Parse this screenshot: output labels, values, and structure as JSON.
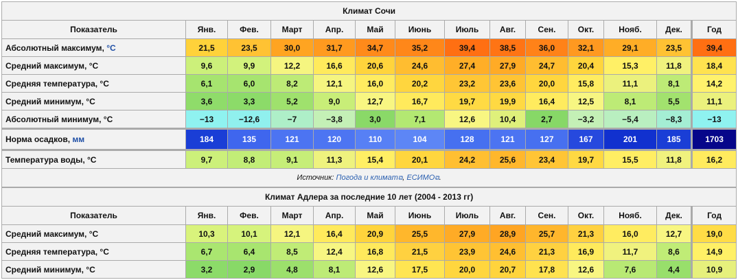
{
  "sochi": {
    "title": "Климат Сочи",
    "header": [
      "Показатель",
      "Янв.",
      "Фев.",
      "Март",
      "Апр.",
      "Май",
      "Июнь",
      "Июль",
      "Авг.",
      "Сен.",
      "Окт.",
      "Нояб.",
      "Дек.",
      "Год"
    ],
    "rows": [
      {
        "label": "Абсолютный максимум, ",
        "unit": "°C",
        "values": [
          "21,5",
          "23,5",
          "30,0",
          "31,7",
          "34,7",
          "35,2",
          "39,4",
          "38,5",
          "36,0",
          "32,1",
          "29,1",
          "23,5",
          "39,4"
        ],
        "colors": [
          "#ffd23a",
          "#ffc233",
          "#ffa421",
          "#ff9a1f",
          "#ff8a1a",
          "#ff8719",
          "#ff6f12",
          "#ff7414",
          "#ff8218",
          "#ff9920",
          "#ffad26",
          "#ffc233",
          "#ff6f12"
        ]
      },
      {
        "label": "Средний максимум, °C",
        "unit": "",
        "values": [
          "9,6",
          "9,9",
          "12,2",
          "16,6",
          "20,6",
          "24,6",
          "27,4",
          "27,9",
          "24,7",
          "20,4",
          "15,3",
          "11,8",
          "18,4"
        ],
        "colors": [
          "#ccf07a",
          "#d2f27c",
          "#f5f580",
          "#ffea5c",
          "#ffd43c",
          "#ffbd30",
          "#ffae27",
          "#ffab26",
          "#ffbd30",
          "#ffd53d",
          "#fff066",
          "#f0f27e",
          "#ffe24f"
        ]
      },
      {
        "label": "Средняя температура, °C",
        "unit": "",
        "values": [
          "6,1",
          "6,0",
          "8,2",
          "12,1",
          "16,0",
          "20,2",
          "23,2",
          "23,6",
          "20,0",
          "15,8",
          "11,1",
          "8,1",
          "14,2"
        ],
        "colors": [
          "#a6e46f",
          "#a6e46f",
          "#bdeb76",
          "#f5f580",
          "#ffec60",
          "#ffd63e",
          "#ffc635",
          "#ffc434",
          "#ffd63e",
          "#ffec60",
          "#ebf17d",
          "#bdeb76",
          "#fff26c"
        ]
      },
      {
        "label": "Средний минимум, °C",
        "unit": "",
        "values": [
          "3,6",
          "3,3",
          "5,2",
          "9,0",
          "12,7",
          "16,7",
          "19,7",
          "19,9",
          "16,4",
          "12,5",
          "8,1",
          "5,5",
          "11,1"
        ],
        "colors": [
          "#8fdc6a",
          "#8cdb69",
          "#9fe16d",
          "#c8ee78",
          "#f8f682",
          "#ffea5c",
          "#ffda43",
          "#ffd942",
          "#ffeb5e",
          "#f7f682",
          "#bdeb76",
          "#a2e26e",
          "#ebf17d"
        ]
      },
      {
        "label": "Абсолютный минимум, °C",
        "unit": "",
        "values": [
          "−13",
          "−12,6",
          "−7",
          "−3,8",
          "3,0",
          "7,1",
          "12,6",
          "10,4",
          "2,7",
          "−3,2",
          "−5,4",
          "−8,3",
          "−13"
        ],
        "colors": [
          "#8ff2f0",
          "#90f0ee",
          "#aeefc8",
          "#c4f0b6",
          "#8ad968",
          "#b3e872",
          "#f8f682",
          "#dff07b",
          "#87d867",
          "#c4f0b6",
          "#b9efc0",
          "#a4eed4",
          "#8ff2f0"
        ]
      },
      {
        "label": "Норма осадков, ",
        "unit": "мм",
        "rain": true,
        "values": [
          "184",
          "135",
          "121",
          "120",
          "110",
          "104",
          "128",
          "121",
          "127",
          "167",
          "201",
          "185",
          "1703"
        ],
        "colors": [
          "#1a3ed6",
          "#3f66ee",
          "#4c74f2",
          "#4d75f2",
          "#5780f5",
          "#5d86f6",
          "#4670f0",
          "#4c74f2",
          "#4770f0",
          "#2649de",
          "#1131cf",
          "#1a3ed6",
          "#06068a"
        ]
      },
      {
        "label": "Температура воды, °C",
        "unit": "",
        "values": [
          "9,7",
          "8,8",
          "9,1",
          "11,3",
          "15,4",
          "20,1",
          "24,2",
          "25,6",
          "23,4",
          "19,7",
          "15,5",
          "11,8",
          "16,2"
        ],
        "colors": [
          "#ccf07a",
          "#c2ed77",
          "#c6ee78",
          "#eef27e",
          "#ffef64",
          "#ffd63e",
          "#ffbf31",
          "#ffb72c",
          "#ffc535",
          "#ffd942",
          "#ffee63",
          "#f0f27e",
          "#ffeb5e"
        ]
      }
    ],
    "source_prefix": "Источник: ",
    "source_link1": "Погода и климат",
    "source_sep": ", ",
    "source_link2": "ЕСИМО",
    "source_suffix": ".",
    "ext_icon": "external-link-icon"
  },
  "adler": {
    "title": "Климат Адлера за последние 10 лет (2004 - 2013 гг)",
    "header": [
      "Показатель",
      "Янв.",
      "Фев.",
      "Март",
      "Апр.",
      "Май",
      "Июнь",
      "Июль",
      "Авг.",
      "Сен.",
      "Окт.",
      "Нояб.",
      "Дек.",
      "Год"
    ],
    "rows": [
      {
        "label": "Средний максимум, °C",
        "values": [
          "10,3",
          "10,1",
          "12,1",
          "16,4",
          "20,9",
          "25,5",
          "27,9",
          "28,9",
          "25,7",
          "21,3",
          "16,0",
          "12,7",
          "19,0"
        ],
        "colors": [
          "#d9f37c",
          "#d6f37c",
          "#f5f580",
          "#ffea5c",
          "#ffd43c",
          "#ffb72c",
          "#ffab26",
          "#ffa523",
          "#ffb62c",
          "#ffd140",
          "#ffec60",
          "#f8f682",
          "#ffdc46"
        ]
      },
      {
        "label": "Средняя температура, °C",
        "values": [
          "6,7",
          "6,4",
          "8,5",
          "12,4",
          "16,8",
          "21,5",
          "23,9",
          "24,6",
          "21,3",
          "16,9",
          "11,7",
          "8,6",
          "14,9"
        ],
        "colors": [
          "#aae670",
          "#a8e56f",
          "#c0ec76",
          "#f7f682",
          "#ffea5c",
          "#ffd140",
          "#ffc434",
          "#ffbf31",
          "#ffd140",
          "#ffea5c",
          "#f0f27e",
          "#c0ec76",
          "#fff066"
        ]
      },
      {
        "label": "Средний минимум, °C",
        "values": [
          "3,2",
          "2,9",
          "4,8",
          "8,1",
          "12,6",
          "17,5",
          "20,0",
          "20,7",
          "17,8",
          "12,6",
          "7,6",
          "4,4",
          "10,9"
        ],
        "colors": [
          "#8cdb69",
          "#88d967",
          "#9ce06c",
          "#bdeb76",
          "#f8f682",
          "#ffe552",
          "#ffd63e",
          "#ffd43c",
          "#ffe24f",
          "#f8f682",
          "#b8e974",
          "#98df6b",
          "#e6f07c"
        ]
      }
    ]
  }
}
